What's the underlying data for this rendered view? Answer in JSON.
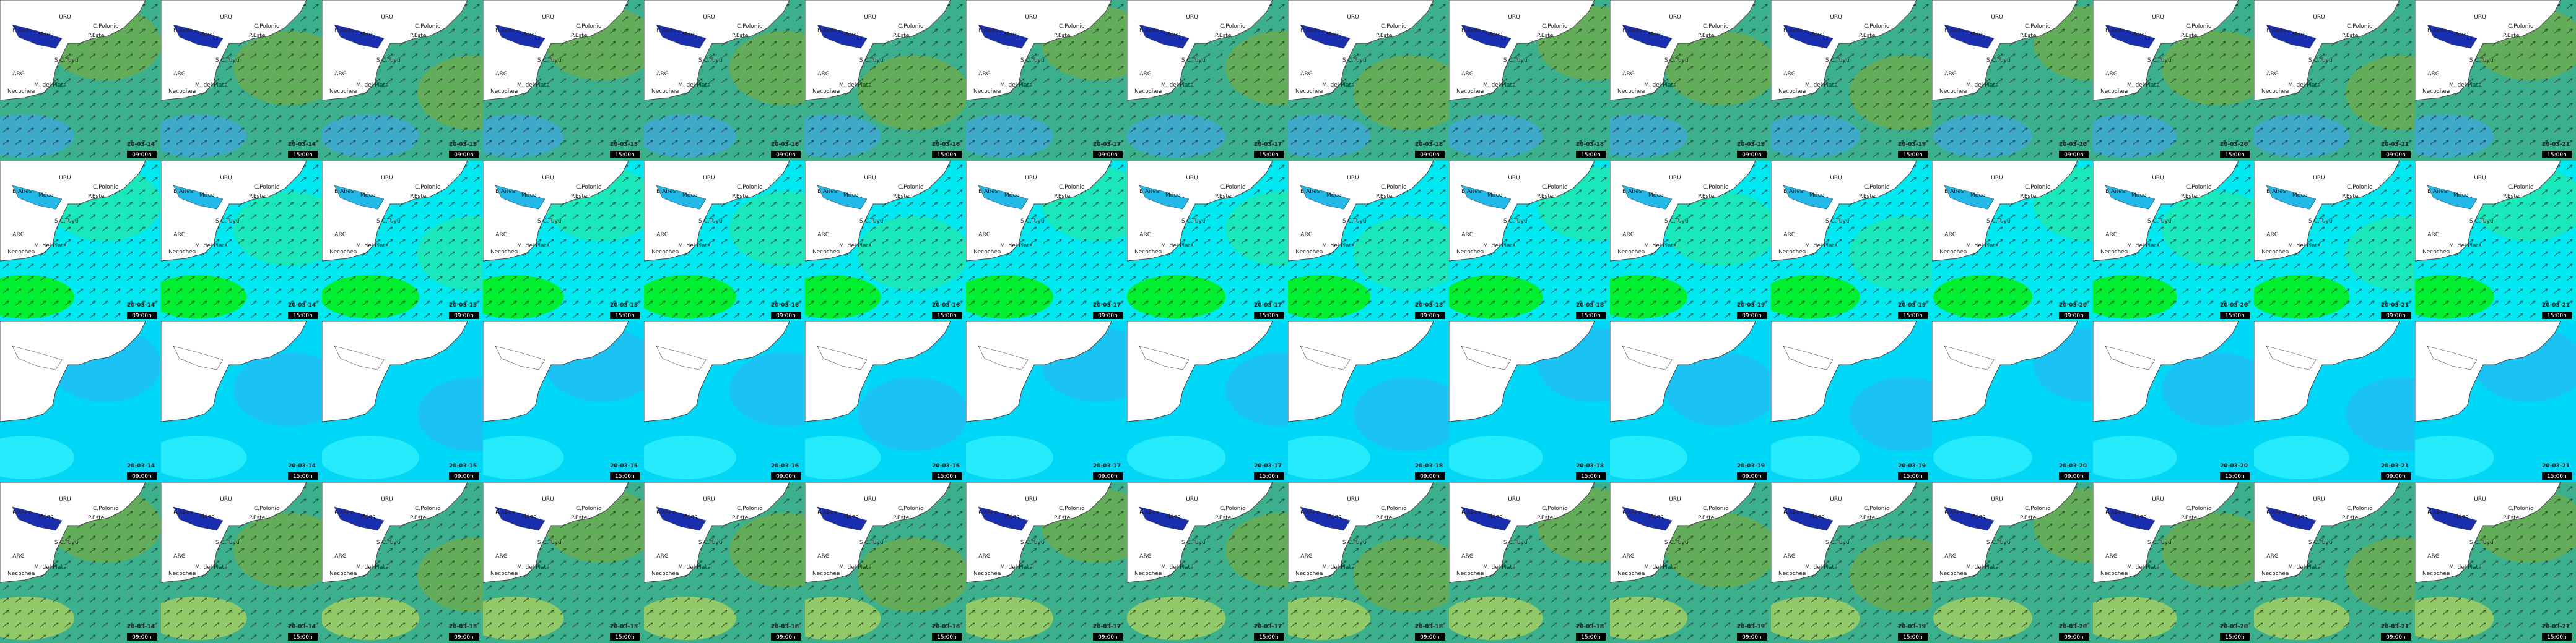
{
  "map_labels": [
    "URU",
    "C.Polonio",
    "B.Aires",
    "Mdeo",
    "P.Este",
    "S.C.Tuyú",
    "ARG",
    "M. del Plata",
    "Necochea"
  ],
  "frames": [
    {
      "date": "20-03-14",
      "time": "09:00h"
    },
    {
      "date": "20-03-14",
      "time": "15:00h"
    },
    {
      "date": "20-03-15",
      "time": "09:00h"
    },
    {
      "date": "20-03-15",
      "time": "15:00h"
    },
    {
      "date": "20-03-16",
      "time": "09:00h"
    },
    {
      "date": "20-03-16",
      "time": "15:00h"
    },
    {
      "date": "20-03-17",
      "time": "09:00h"
    },
    {
      "date": "20-03-17",
      "time": "15:00h"
    },
    {
      "date": "20-03-18",
      "time": "09:00h"
    },
    {
      "date": "20-03-18",
      "time": "15:00h"
    },
    {
      "date": "20-03-19",
      "time": "09:00h"
    },
    {
      "date": "20-03-19",
      "time": "15:00h"
    },
    {
      "date": "20-03-20",
      "time": "09:00h"
    },
    {
      "date": "20-03-20",
      "time": "15:00h"
    },
    {
      "date": "20-03-21",
      "time": "09:00h"
    },
    {
      "date": "20-03-21",
      "time": "15:00h"
    }
  ]
}
